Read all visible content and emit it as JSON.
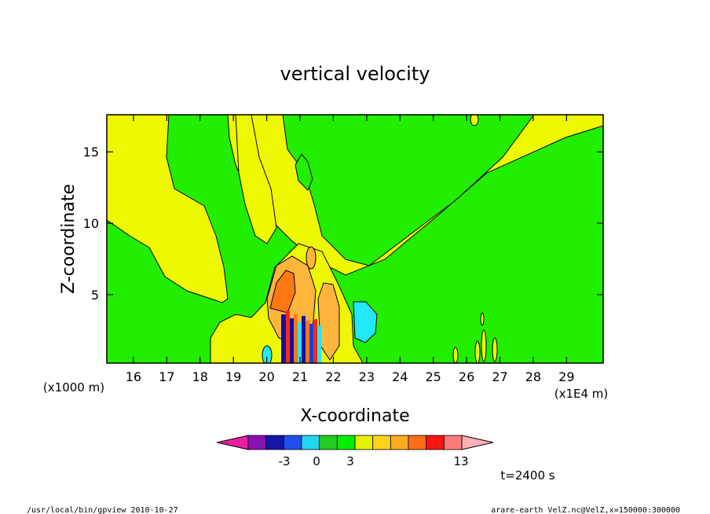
{
  "chart_data": {
    "type": "heatmap",
    "title": "vertical velocity",
    "xlabel": "X-coordinate",
    "ylabel": "Z-coordinate",
    "x_multiplier": "(x1E4 m)",
    "y_multiplier": "(x1000 m)",
    "x_ticks": [
      "16",
      "17",
      "18",
      "19",
      "20",
      "21",
      "22",
      "23",
      "24",
      "25",
      "26",
      "27",
      "28",
      "29"
    ],
    "y_ticks": [
      "5",
      "10",
      "15"
    ],
    "xlim": [
      15.2,
      30.1
    ],
    "ylim": [
      0.2,
      17.6
    ],
    "colorbar": {
      "labels": [
        {
          "value": -3,
          "text": "-3"
        },
        {
          "value": 0,
          "text": "0"
        },
        {
          "value": 3,
          "text": "3"
        },
        {
          "value": 13,
          "text": "13"
        }
      ],
      "colors": [
        "#e81ea0",
        "#8a10b4",
        "#1414a8",
        "#1e50f0",
        "#22d8f0",
        "#22cc22",
        "#00ee00",
        "#e6f000",
        "#ffd21e",
        "#ffaa1e",
        "#ff6e14",
        "#ff1414",
        "#ff7a7a",
        "#ffb0b0"
      ]
    },
    "colors": {
      "green": "#22ee00",
      "yellow": "#eef800",
      "orange": "#ff7814",
      "light_orange": "#ffb43c",
      "red": "#ff2814",
      "cyan": "#22e8f8",
      "blue": "#1840e0",
      "dark_blue": "#1010a0"
    },
    "time_label": "t=2400 s"
  },
  "footer": {
    "left": "/usr/local/bin/gpview  2010-10-27",
    "right": "arare-earth_VelZ.nc@VelZ,x=150000:300000"
  }
}
